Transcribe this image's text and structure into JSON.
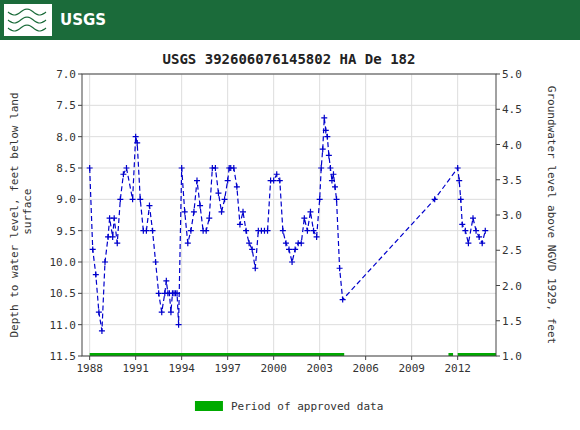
{
  "chart_data": {
    "type": "line",
    "title": "USGS 392606076145802 HA De 182",
    "banner": {
      "text": "USGS",
      "color": "#1B6B3A"
    },
    "y_label": "Depth to water level, feet below land\n surface",
    "y2_label": "Groundwater level above NGVD 1929, feet",
    "xlim": [
      1987.5,
      2014.5
    ],
    "xticks": [
      1988,
      1991,
      1994,
      1997,
      2000,
      2003,
      2006,
      2009,
      2012
    ],
    "ylim": [
      11.5,
      7.0
    ],
    "yticks": [
      {
        "value": 7.0,
        "label": "7.0"
      },
      7.5,
      {
        "value": 8.0,
        "label": "8.0"
      },
      8.5,
      {
        "value": 9.0,
        "label": "9.0"
      },
      9.5,
      {
        "value": 10.0,
        "label": "10.0"
      },
      10.5,
      {
        "value": 11.0,
        "label": "11.0"
      },
      11.5
    ],
    "y2lim": [
      1.0,
      5.0
    ],
    "y2ticks": [
      {
        "value": 1.0,
        "label": "1.0"
      },
      1.5,
      {
        "value": 2.0,
        "label": "2.0"
      },
      2.5,
      {
        "value": 3.0,
        "label": "3.0"
      },
      3.5,
      {
        "value": 4.0,
        "label": "4.0"
      },
      4.5,
      {
        "value": 5.0,
        "label": "5.0"
      }
    ],
    "grid": true,
    "x": [
      1988.0,
      1988.2,
      1988.4,
      1988.6,
      1988.8,
      1989.0,
      1989.2,
      1989.3,
      1989.5,
      1989.6,
      1989.8,
      1990.0,
      1990.2,
      1990.4,
      1990.8,
      1991.0,
      1991.1,
      1991.3,
      1991.5,
      1991.7,
      1991.9,
      1992.1,
      1992.3,
      1992.5,
      1992.7,
      1992.9,
      1993.0,
      1993.1,
      1993.2,
      1993.3,
      1993.4,
      1993.5,
      1993.6,
      1993.7,
      1993.8,
      1994.0,
      1994.2,
      1994.4,
      1994.6,
      1994.8,
      1995.0,
      1995.2,
      1995.4,
      1995.6,
      1995.8,
      1996.0,
      1996.2,
      1996.4,
      1996.6,
      1996.8,
      1997.0,
      1997.1,
      1997.2,
      1997.4,
      1997.6,
      1997.8,
      1998.0,
      1998.2,
      1998.4,
      1998.6,
      1998.8,
      1999.0,
      1999.2,
      1999.4,
      1999.6,
      1999.8,
      2000.0,
      2000.2,
      2000.4,
      2000.6,
      2000.8,
      2001.0,
      2001.2,
      2001.4,
      2001.6,
      2001.8,
      2002.0,
      2002.2,
      2002.4,
      2002.6,
      2002.8,
      2003.0,
      2003.1,
      2003.2,
      2003.3,
      2003.4,
      2003.5,
      2003.6,
      2003.7,
      2003.8,
      2003.9,
      2004.0,
      2004.1,
      2004.3,
      2004.5,
      2010.5,
      2012.0,
      2012.1,
      2012.2,
      2012.3,
      2012.5,
      2012.7,
      2013.0,
      2013.2,
      2013.4,
      2013.6,
      2013.8
    ],
    "series": [
      {
        "type": "line",
        "color": "#0000CC",
        "marker": "plus",
        "line_style": "dashed",
        "values": [
          8.5,
          9.8,
          10.2,
          10.8,
          11.1,
          10.0,
          9.6,
          9.3,
          9.6,
          9.3,
          9.7,
          9.0,
          8.6,
          8.5,
          9.0,
          8.0,
          8.1,
          9.0,
          9.5,
          9.5,
          9.1,
          9.5,
          10.0,
          10.5,
          10.8,
          10.5,
          10.3,
          10.5,
          10.5,
          10.8,
          10.5,
          10.5,
          10.5,
          10.5,
          11.0,
          8.5,
          9.2,
          9.7,
          9.5,
          9.2,
          8.7,
          9.1,
          9.5,
          9.5,
          9.3,
          8.5,
          8.5,
          8.9,
          9.2,
          9.0,
          8.7,
          8.5,
          8.5,
          8.5,
          8.8,
          9.4,
          9.2,
          9.5,
          9.7,
          9.8,
          10.1,
          9.5,
          9.5,
          9.5,
          9.5,
          8.7,
          8.7,
          8.6,
          8.7,
          9.5,
          9.7,
          9.8,
          10.0,
          9.8,
          9.7,
          9.7,
          9.3,
          9.5,
          9.2,
          9.5,
          9.6,
          9.0,
          8.5,
          8.2,
          7.7,
          7.9,
          8.0,
          8.3,
          8.5,
          8.7,
          8.6,
          8.8,
          9.0,
          10.1,
          10.6,
          9.0,
          8.5,
          8.7,
          9.0,
          9.4,
          9.5,
          9.7,
          9.3,
          9.5,
          9.6,
          9.7,
          9.5
        ]
      }
    ],
    "periods": [
      {
        "name": "Period of approved data",
        "color": "#00AA00",
        "y": 11.5,
        "values": [
          [
            1988.0,
            2004.6
          ],
          [
            2011.4,
            2011.7
          ],
          [
            2012.0,
            2014.5
          ]
        ]
      }
    ]
  }
}
